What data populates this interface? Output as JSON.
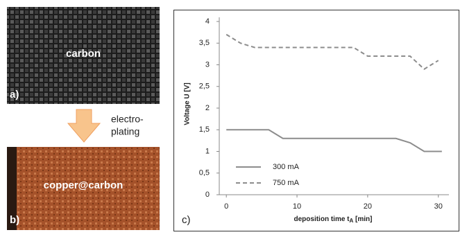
{
  "panels": {
    "a_label": "a)",
    "a_text": "carbon",
    "b_label": "b)",
    "b_text": "copper@carbon",
    "process": [
      "electro-",
      "plating"
    ],
    "c_label": "c)"
  },
  "chart_data": {
    "type": "line",
    "x_label": [
      "deposition time t",
      "A",
      " [min]"
    ],
    "y_label": "Voltage U [V]",
    "xlim": [
      -1,
      31.5
    ],
    "ylim": [
      0,
      4
    ],
    "xticks": [
      0,
      10,
      20,
      30
    ],
    "yticks": [
      0,
      {
        "value": 0.5,
        "label": "0,5"
      },
      1,
      {
        "value": 1.5,
        "label": "1,5"
      },
      2,
      {
        "value": 2.5,
        "label": "2,5"
      },
      3,
      {
        "value": 3.5,
        "label": "3,5"
      },
      4
    ],
    "series": [
      {
        "name": "300 mA",
        "color": "#8c8c8c",
        "dash": false,
        "x": [
          0,
          6,
          8,
          24,
          26,
          28,
          30.5
        ],
        "values": [
          1.5,
          1.5,
          1.3,
          1.3,
          1.2,
          1.0,
          1.0
        ]
      },
      {
        "name": "750 mA",
        "color": "#8c8c8c",
        "dash": true,
        "x": [
          0,
          2,
          4,
          18,
          20,
          26,
          28,
          30
        ],
        "values": [
          3.7,
          3.5,
          3.4,
          3.4,
          3.2,
          3.2,
          2.9,
          3.1
        ]
      }
    ]
  }
}
